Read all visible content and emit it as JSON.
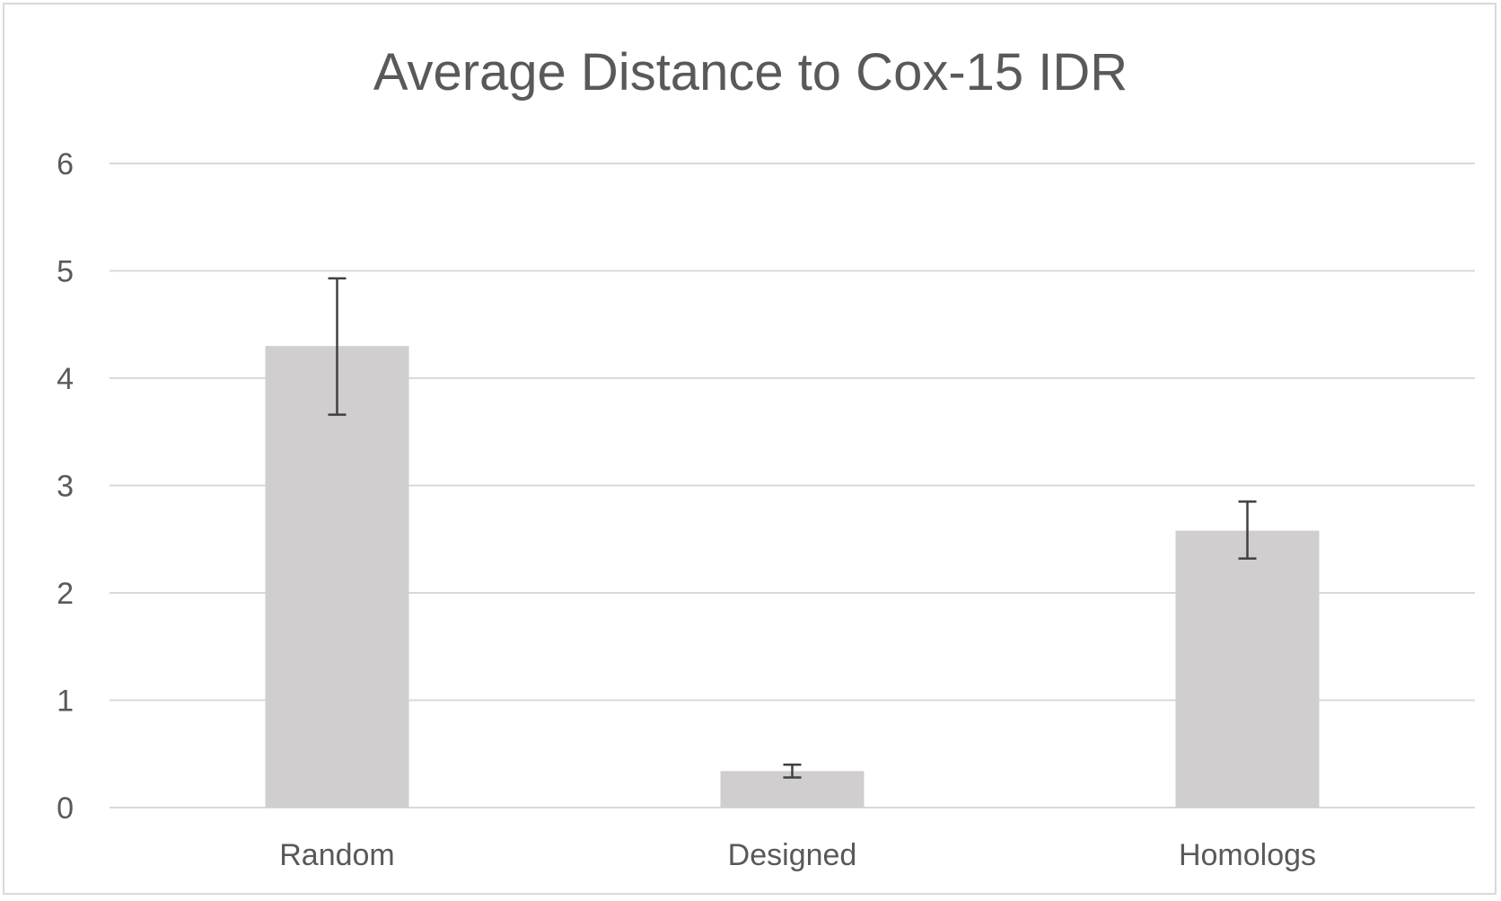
{
  "chart_data": {
    "type": "bar",
    "title": "Average Distance to Cox-15 IDR",
    "xlabel": "",
    "ylabel": "",
    "categories": [
      "Random",
      "Designed",
      "Homologs"
    ],
    "values": [
      4.3,
      0.34,
      2.58
    ],
    "error_bars": [
      {
        "low": 3.66,
        "high": 4.93
      },
      {
        "low": 0.28,
        "high": 0.4
      },
      {
        "low": 2.32,
        "high": 2.85
      }
    ],
    "ylim": [
      0,
      6
    ],
    "yticks": [
      0,
      1,
      2,
      3,
      4,
      5,
      6
    ],
    "grid": true,
    "legend": "none",
    "colors": {
      "bar": "#d0cecf",
      "grid": "#d9d9d9",
      "error_bar": "#404040",
      "text": "#595959"
    }
  }
}
